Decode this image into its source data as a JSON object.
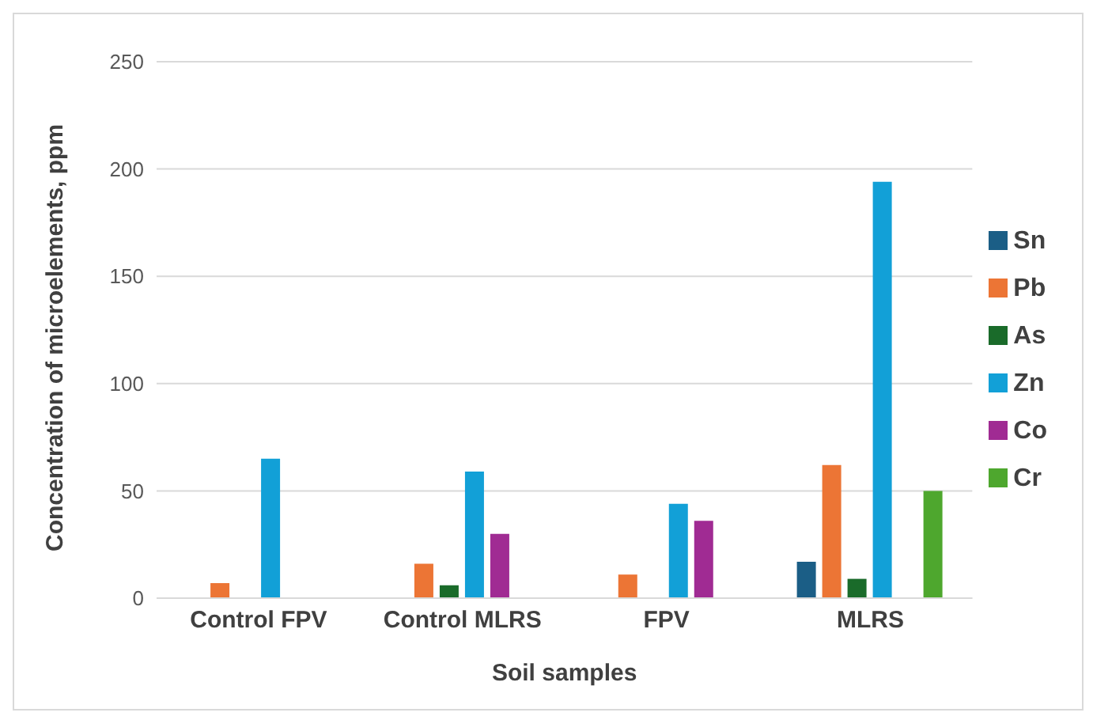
{
  "chart_data": {
    "type": "bar",
    "xlabel": "Soil samples",
    "ylabel": "Concentration of microelements, ppm",
    "categories": [
      "Control FPV",
      "Control MLRS",
      "FPV",
      "MLRS"
    ],
    "series": [
      {
        "name": "Sn",
        "color": "#1b5e86",
        "values": [
          null,
          null,
          null,
          17
        ]
      },
      {
        "name": "Pb",
        "color": "#ec7535",
        "values": [
          7,
          16,
          11,
          62
        ]
      },
      {
        "name": "As",
        "color": "#1a6b2a",
        "values": [
          null,
          6,
          null,
          9
        ]
      },
      {
        "name": "Zn",
        "color": "#12a0d7",
        "values": [
          65,
          59,
          44,
          194
        ]
      },
      {
        "name": "Co",
        "color": "#a02b93",
        "values": [
          null,
          30,
          36,
          null
        ]
      },
      {
        "name": "Cr",
        "color": "#4ea72e",
        "values": [
          null,
          null,
          null,
          50
        ]
      }
    ],
    "ylim": [
      0,
      250
    ],
    "yticks": [
      0,
      50,
      100,
      150,
      200,
      250
    ],
    "grid": "y",
    "legend": "right"
  }
}
